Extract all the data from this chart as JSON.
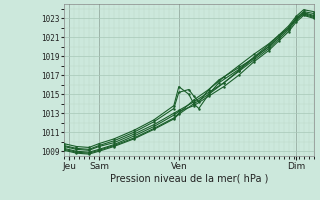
{
  "bg_color": "#cce8dc",
  "grid_color_major": "#a8c8b8",
  "grid_color_minor": "#bcd8c8",
  "line_color": "#1a5e2a",
  "xlabel": "Pression niveau de la mer( hPa )",
  "ylim": [
    1008.5,
    1024.5
  ],
  "yticks": [
    1009,
    1011,
    1013,
    1015,
    1017,
    1019,
    1021,
    1023
  ],
  "xlim": [
    0,
    100
  ],
  "xtick_positions": [
    2,
    14,
    46,
    93
  ],
  "xtick_labels": [
    "Jeu",
    "Sam",
    "Ven",
    "Dim"
  ],
  "lines": [
    [
      0,
      1009.5,
      5,
      1009.2,
      10,
      1009.1,
      14,
      1009.5,
      20,
      1009.9,
      28,
      1010.8,
      36,
      1011.8,
      44,
      1013.0,
      46,
      1013.3,
      52,
      1014.2,
      58,
      1015.2,
      64,
      1016.2,
      70,
      1017.4,
      76,
      1018.6,
      82,
      1019.8,
      86,
      1020.8,
      90,
      1021.8,
      93,
      1022.8,
      96,
      1023.5,
      100,
      1023.2
    ],
    [
      0,
      1009.3,
      5,
      1009.0,
      10,
      1008.9,
      14,
      1009.2,
      20,
      1009.7,
      28,
      1010.6,
      36,
      1011.6,
      44,
      1012.8,
      46,
      1013.2,
      52,
      1013.8,
      58,
      1014.8,
      64,
      1015.8,
      70,
      1017.0,
      76,
      1018.4,
      82,
      1019.6,
      86,
      1020.6,
      90,
      1021.6,
      93,
      1022.6,
      96,
      1023.3,
      100,
      1023.0
    ],
    [
      0,
      1009.6,
      5,
      1009.3,
      10,
      1009.2,
      14,
      1009.6,
      20,
      1010.1,
      28,
      1011.0,
      36,
      1012.1,
      44,
      1013.5,
      46,
      1015.2,
      50,
      1015.5,
      52,
      1014.8,
      54,
      1014.2,
      58,
      1015.5,
      62,
      1016.5,
      70,
      1017.8,
      76,
      1018.8,
      82,
      1020.0,
      86,
      1021.0,
      90,
      1022.0,
      93,
      1023.0,
      96,
      1023.7,
      100,
      1023.5
    ],
    [
      0,
      1009.8,
      5,
      1009.5,
      10,
      1009.4,
      14,
      1009.8,
      20,
      1010.3,
      28,
      1011.2,
      36,
      1012.3,
      44,
      1013.8,
      46,
      1015.8,
      50,
      1015.0,
      52,
      1014.0,
      54,
      1013.5,
      58,
      1015.0,
      62,
      1016.2,
      70,
      1017.6,
      76,
      1018.9,
      82,
      1020.2,
      86,
      1021.2,
      90,
      1022.2,
      93,
      1023.2,
      96,
      1023.9,
      100,
      1023.7
    ],
    [
      0,
      1009.2,
      5,
      1008.9,
      10,
      1008.8,
      14,
      1009.1,
      20,
      1009.6,
      28,
      1010.4,
      36,
      1011.4,
      44,
      1012.5,
      46,
      1013.0,
      52,
      1014.4,
      58,
      1015.5,
      64,
      1016.8,
      70,
      1018.0,
      76,
      1019.2,
      82,
      1020.3,
      86,
      1021.2,
      90,
      1022.0,
      93,
      1022.9,
      96,
      1023.4,
      100,
      1023.1
    ],
    [
      0,
      1009.1,
      5,
      1008.8,
      10,
      1008.7,
      14,
      1009.0,
      20,
      1009.5,
      28,
      1010.3,
      36,
      1011.3,
      44,
      1012.4,
      46,
      1012.9,
      52,
      1014.0,
      58,
      1015.0,
      64,
      1016.2,
      70,
      1017.5,
      76,
      1018.8,
      82,
      1020.0,
      86,
      1021.0,
      90,
      1022.0,
      93,
      1023.0,
      96,
      1023.6,
      100,
      1023.3
    ]
  ],
  "marker": ".",
  "markersize": 1.5,
  "linewidth": 0.8,
  "ytick_fontsize": 5.5,
  "xtick_fontsize": 6.5,
  "xlabel_fontsize": 7
}
